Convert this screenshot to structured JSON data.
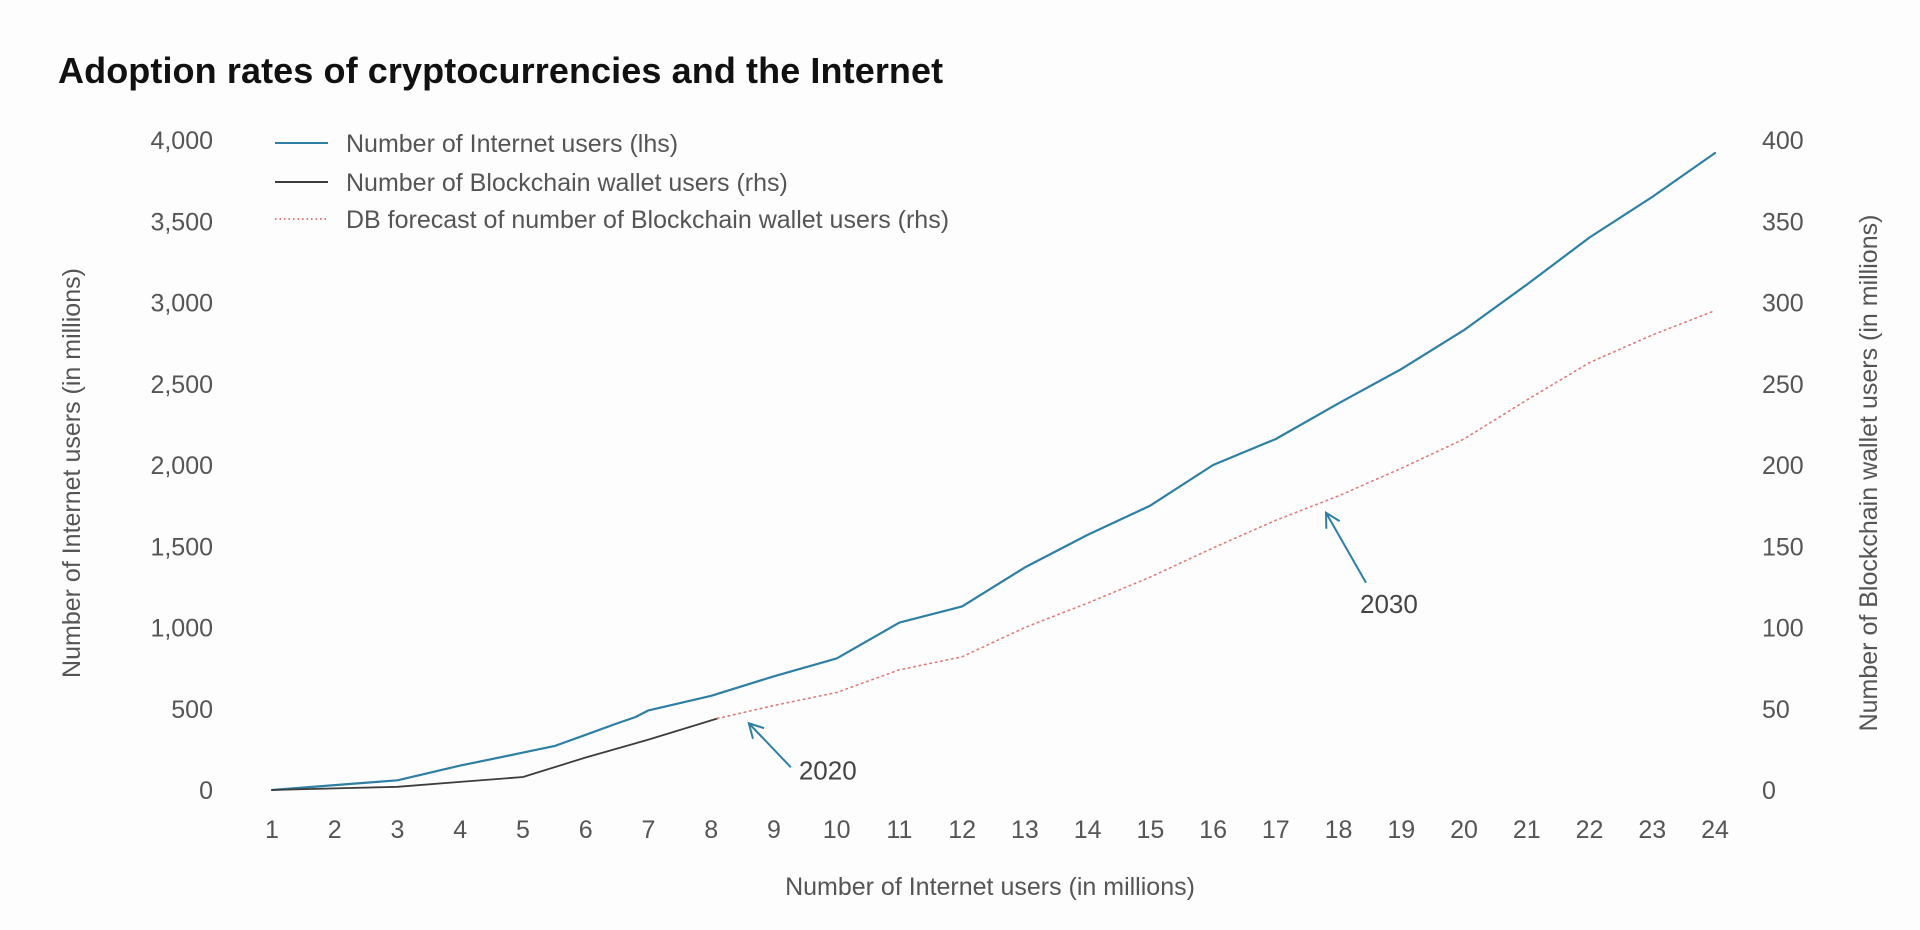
{
  "title": "Adoption rates of cryptocurrencies and the Internet",
  "colors": {
    "internet": "#2e7fa3",
    "blockchain": "#3d3d3d",
    "forecast": "#e07a7a",
    "arrow": "#2e7fa3",
    "text": "#555555"
  },
  "chart_data": {
    "type": "line",
    "title": "Adoption rates of cryptocurrencies and the Internet",
    "xlabel": "Number of Internet users (in millions)",
    "ylabel_left": "Number of Internet users (in millions)",
    "ylabel_right": "Number of Blockchain wallet users (in millions)",
    "x_ticks": [
      "1",
      "2",
      "3",
      "4",
      "5",
      "6",
      "7",
      "8",
      "9",
      "10",
      "11",
      "12",
      "13",
      "14",
      "15",
      "16",
      "17",
      "18",
      "19",
      "20",
      "21",
      "22",
      "23",
      "24"
    ],
    "xlim": [
      1,
      24
    ],
    "y_left": {
      "lim": [
        0,
        4000
      ],
      "ticks": [
        "0",
        "500",
        "1,000",
        "1,500",
        "2,000",
        "2,500",
        "3,000",
        "3,500",
        "4,000"
      ]
    },
    "y_right": {
      "lim": [
        0,
        400
      ],
      "ticks": [
        "0",
        "50",
        "100",
        "150",
        "200",
        "250",
        "300",
        "350",
        "400"
      ]
    },
    "legend_position": "top-left",
    "grid": false,
    "series": [
      {
        "name": "Number of Internet users (lhs)",
        "axis": "left",
        "style": "solid",
        "x": [
          1,
          2,
          3,
          4,
          5,
          5.5,
          6,
          6.5,
          6.8,
          7,
          8,
          9,
          10,
          11,
          12,
          13,
          14,
          15,
          16,
          17,
          18,
          19,
          20,
          21,
          22,
          23,
          24
        ],
        "y": [
          0,
          30,
          60,
          150,
          230,
          270,
          340,
          410,
          450,
          490,
          580,
          700,
          810,
          1030,
          1130,
          1370,
          1570,
          1750,
          2000,
          2160,
          2380,
          2590,
          2830,
          3110,
          3400,
          3650,
          3920
        ]
      },
      {
        "name": "Number of Blockchain wallet users (rhs)",
        "axis": "right",
        "style": "solid",
        "x": [
          1,
          2,
          3,
          4,
          5,
          6,
          7,
          8.1
        ],
        "y": [
          0,
          1,
          2,
          5,
          8,
          20,
          31,
          44
        ]
      },
      {
        "name": "DB forecast of number of Blockchain wallet users (rhs)",
        "axis": "right",
        "style": "dotted",
        "x": [
          8.1,
          9,
          10,
          11,
          12,
          13,
          14,
          15,
          16,
          17,
          18,
          19,
          20,
          21,
          22,
          23,
          24
        ],
        "y": [
          44,
          52,
          60,
          74,
          82,
          100,
          115,
          131,
          149,
          166,
          181,
          198,
          216,
          240,
          263,
          280,
          295
        ]
      }
    ],
    "annotations": [
      {
        "text": "2020",
        "points_to_x": 8.6,
        "points_to_series": "DB forecast of number of Blockchain wallet users (rhs)"
      },
      {
        "text": "2030",
        "points_to_x": 17.8,
        "points_to_series": "DB forecast of number of Blockchain wallet users (rhs)"
      }
    ]
  }
}
